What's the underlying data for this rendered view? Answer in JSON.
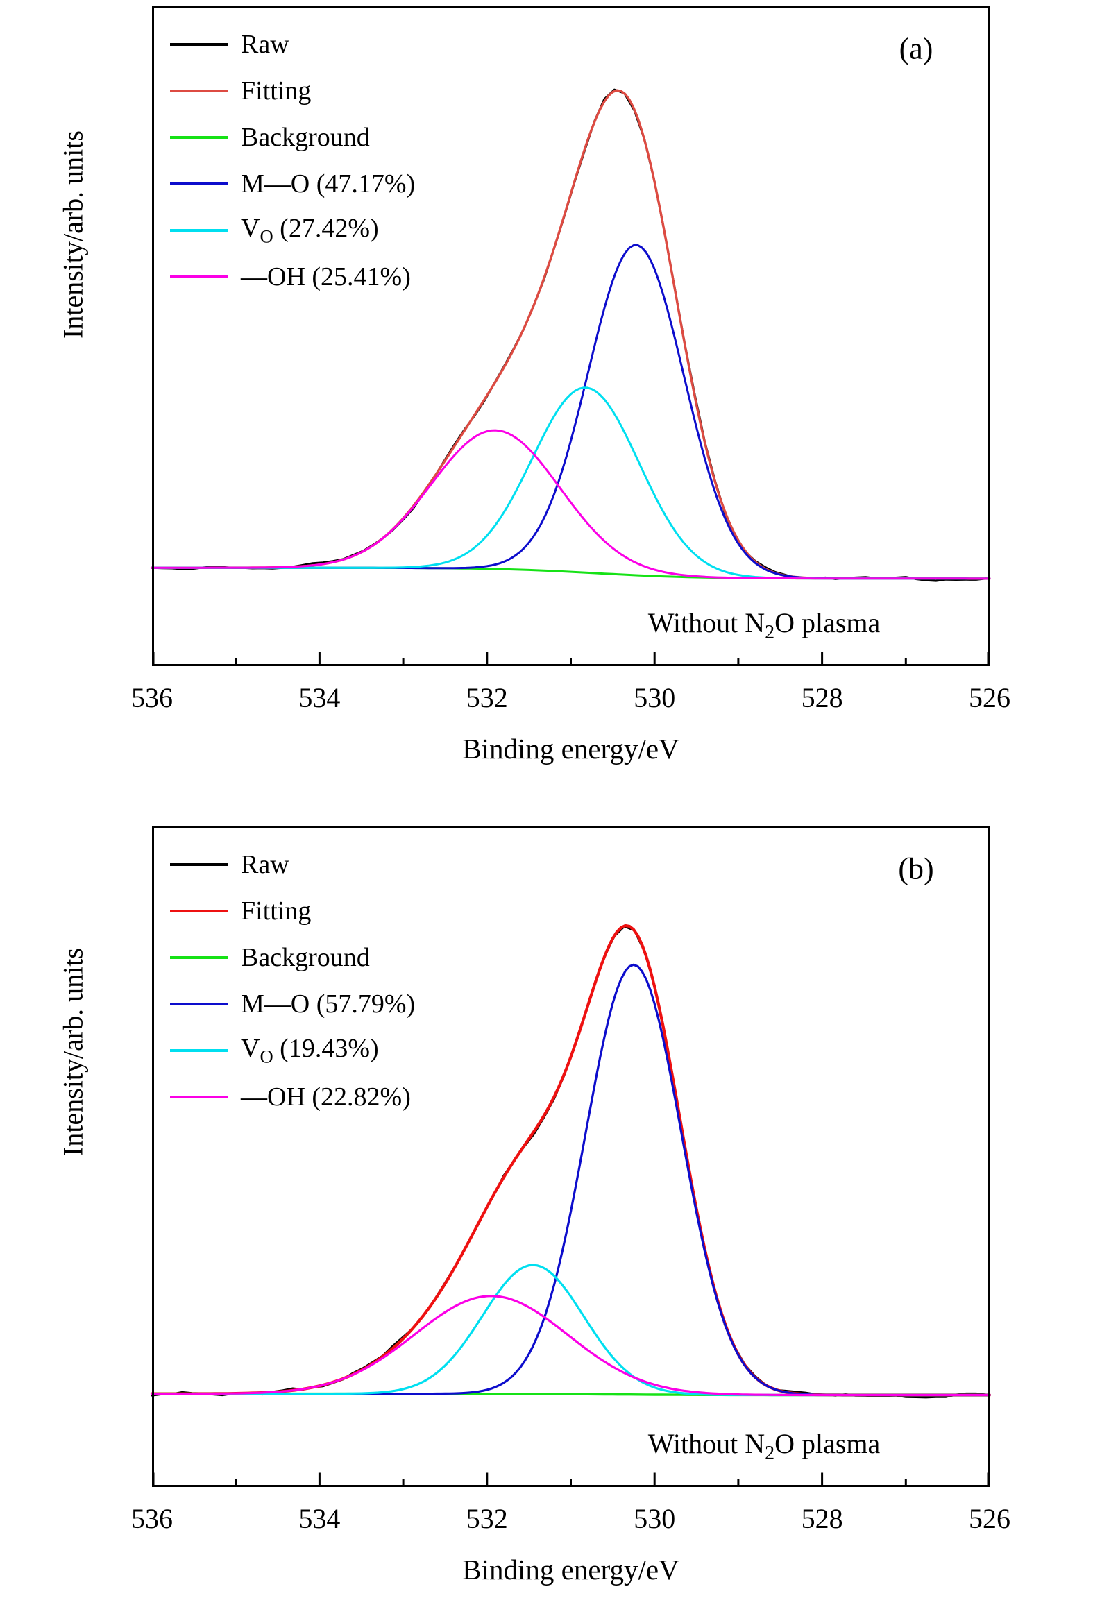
{
  "chart_data": [
    {
      "panel_label": "(a)",
      "type": "line",
      "xlabel": "Binding energy/eV",
      "ylabel": "Intensity/arb. units",
      "x_range": [
        536,
        526
      ],
      "x_ticks": [
        536,
        534,
        532,
        530,
        528,
        526
      ],
      "x_minor_ticks": [
        535,
        533,
        531,
        529,
        527
      ],
      "y_tick_labels": [],
      "annotation_parts": [
        [
          "t",
          "Without N"
        ],
        [
          "s",
          "2"
        ],
        [
          "t",
          "O plasma"
        ]
      ],
      "baseline_frac": 0.851,
      "background_model": {
        "b0": 0.851,
        "drop": 0.0165,
        "center_eV": 530.7,
        "width_eV": 0.6
      },
      "series": [
        {
          "role": "raw",
          "color": "#000000",
          "lw": 3,
          "noise_amp": 0.0055,
          "seed": 11,
          "legend_parts": [
            [
              "t",
              "Raw"
            ]
          ]
        },
        {
          "role": "fit",
          "color": "#dd4b42",
          "lw": 3.4,
          "legend_parts": [
            [
              "t",
              "Fitting"
            ]
          ]
        },
        {
          "role": "background",
          "color": "#16e216",
          "lw": 3,
          "legend_parts": [
            [
              "t",
              "Background"
            ]
          ]
        },
        {
          "role": "component",
          "name": "M—O",
          "pct": "47.17%",
          "color": "#0d0dcc",
          "lw": 3,
          "center_eV": 530.22,
          "fwhm_eV": 1.35,
          "amplitude_frac": 0.5,
          "legend_parts": [
            [
              "t",
              "M—O (47.17%)"
            ]
          ]
        },
        {
          "role": "component",
          "name": "V_O",
          "pct": "27.42%",
          "color": "#00dff0",
          "lw": 3,
          "center_eV": 530.82,
          "fwhm_eV": 1.5,
          "amplitude_frac": 0.28,
          "legend_parts": [
            [
              "t",
              "V"
            ],
            [
              "s",
              "O"
            ],
            [
              "t",
              " (27.42%)"
            ]
          ]
        },
        {
          "role": "component",
          "name": "—OH",
          "pct": "25.41%",
          "color": "#fb00e6",
          "lw": 3,
          "center_eV": 531.9,
          "fwhm_eV": 1.8,
          "amplitude_frac": 0.21,
          "legend_parts": [
            [
              "t",
              "—OH (25.41%)"
            ]
          ]
        }
      ]
    },
    {
      "panel_label": "(b)",
      "type": "line",
      "xlabel": "Binding energy/eV",
      "ylabel": "Intensity/arb. units",
      "x_range": [
        536,
        526
      ],
      "x_ticks": [
        536,
        534,
        532,
        530,
        528,
        526
      ],
      "x_minor_ticks": [
        535,
        533,
        531,
        529,
        527
      ],
      "y_tick_labels": [],
      "annotation_parts": [
        [
          "t",
          "Without N"
        ],
        [
          "s",
          "2"
        ],
        [
          "t",
          "O plasma"
        ]
      ],
      "baseline_frac": 0.859,
      "background_model": {
        "b0": 0.859,
        "drop": 0.002,
        "center_eV": 530.5,
        "width_eV": 0.6
      },
      "series": [
        {
          "role": "raw",
          "color": "#000000",
          "lw": 3,
          "noise_amp": 0.006,
          "seed": 5,
          "legend_parts": [
            [
              "t",
              "Raw"
            ]
          ]
        },
        {
          "role": "fit",
          "color": "#ee1111",
          "lw": 4.2,
          "legend_parts": [
            [
              "t",
              "Fitting"
            ]
          ]
        },
        {
          "role": "background",
          "color": "#16e216",
          "lw": 3.4,
          "legend_parts": [
            [
              "t",
              "Background"
            ]
          ]
        },
        {
          "role": "component",
          "name": "M—O",
          "pct": "57.79%",
          "color": "#0d0dcc",
          "lw": 3.2,
          "center_eV": 530.25,
          "fwhm_eV": 1.35,
          "amplitude_frac": 0.65,
          "legend_parts": [
            [
              "t",
              "M—O (57.79%)"
            ]
          ]
        },
        {
          "role": "component",
          "name": "V_O",
          "pct": "19.43%",
          "color": "#00dff0",
          "lw": 3.2,
          "center_eV": 531.45,
          "fwhm_eV": 1.42,
          "amplitude_frac": 0.195,
          "legend_parts": [
            [
              "t",
              "V"
            ],
            [
              "s",
              "O"
            ],
            [
              "t",
              " (19.43%)"
            ]
          ]
        },
        {
          "role": "component",
          "name": "—OH",
          "pct": "22.82%",
          "color": "#fb00e6",
          "lw": 3.2,
          "center_eV": 531.95,
          "fwhm_eV": 2.15,
          "amplitude_frac": 0.148,
          "legend_parts": [
            [
              "t",
              "—OH (22.82%)"
            ]
          ]
        }
      ]
    }
  ]
}
